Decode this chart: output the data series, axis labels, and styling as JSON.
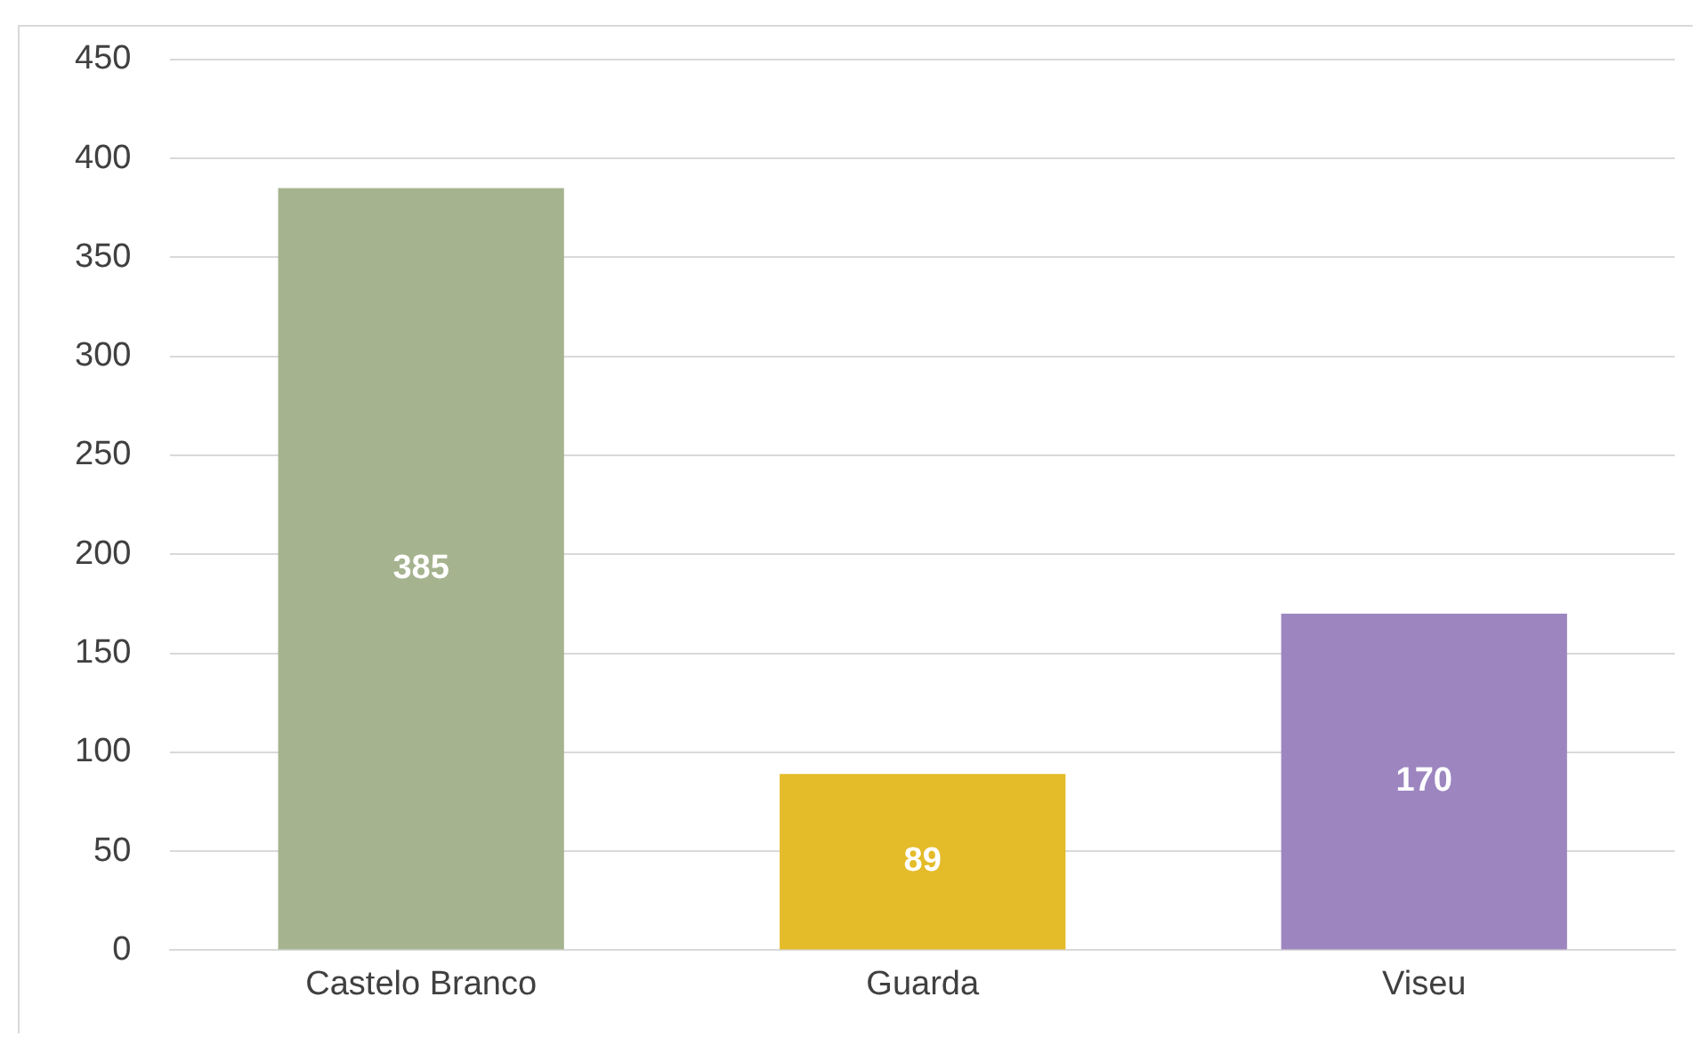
{
  "chart_data": {
    "type": "bar",
    "categories": [
      "Castelo Branco",
      "Guarda",
      "Viseu"
    ],
    "values": [
      385,
      89,
      170
    ],
    "colors": [
      "#a5b38f",
      "#e4bb29",
      "#9d86c0"
    ],
    "ylim": [
      0,
      450
    ],
    "yticks": [
      0,
      50,
      100,
      150,
      200,
      250,
      300,
      350,
      400,
      450
    ],
    "grid": "y",
    "legend": false,
    "data_labels": true
  }
}
